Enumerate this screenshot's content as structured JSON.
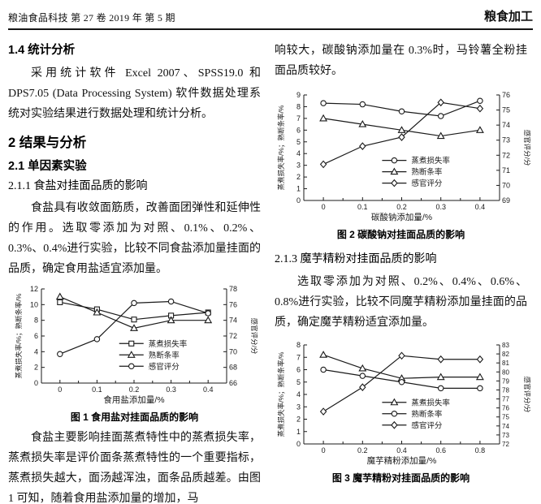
{
  "header": {
    "journal_info": "粮油食品科技 第 27 卷 2019 年 第 5 期",
    "section_label": "粮食加工"
  },
  "left_column": {
    "heading_14": "1.4  统计分析",
    "para_stats": "采用统计软件 Excel 2007、SPSS19.0 和 DPS7.05 (Data Processing System) 软件数据处理系统对实验结果进行数据处理和统计分析。",
    "heading_2": "2  结果与分析",
    "heading_21": "2.1  单因素实验",
    "heading_211": "2.1.1  食盐对挂面品质的影响",
    "para_salt": "食盐具有收敛面筋质，改善面团弹性和延伸性的作用。选取零添加为对照、0.1%、0.2%、0.3%、0.4%进行实验，比较不同食盐添加量挂面的品质，确定食用盐适宜添加量。",
    "para_salt2": "食盐主要影响挂面蒸煮特性中的蒸煮损失率，蒸煮损失率是评价面条蒸煮特性的一个重要指标，蒸煮损失越大，面汤越浑浊，面条品质越差。由图 1 可知，随着食用盐添加量的增加，马"
  },
  "right_column": {
    "para_cont": "响较大，碳酸钠添加量在 0.3%时，马铃薯全粉挂面品质较好。",
    "heading_213": "2.1.3  魔芋精粉对挂面品质的影响",
    "para_konjac": "选取零添加为对照、0.2%、0.4%、0.6%、0.8%进行实验，比较不同魔芋精粉添加量挂面的品质，确定魔芋精粉适宜添加量。"
  },
  "colors": {
    "ink": "#1a1a1a"
  },
  "chart_data": [
    {
      "type": "line",
      "caption": "图 1  食用盐对挂面品质的影响",
      "categories": [
        "0",
        "0.1",
        "0.2",
        "0.3",
        "0.4"
      ],
      "xlabel": "食用盐添加量/%",
      "ylabel_left": "蒸煮损失率/%；熟断条率/%",
      "ylabel_right": "感官评分/分",
      "ylim_left": [
        0,
        12
      ],
      "ystep_left": 2,
      "ylim_right": [
        66,
        78
      ],
      "ystep_right": 2,
      "grid": false,
      "legend_position": "inside-center",
      "legend": {
        "x": 0.42,
        "y": 0.58
      },
      "series": [
        {
          "name": "蒸煮损失率",
          "marker": "square",
          "axis": "left",
          "values": [
            10.3,
            9.4,
            8.1,
            8.6,
            9.0
          ]
        },
        {
          "name": "熟断条率",
          "marker": "triangle",
          "axis": "left",
          "values": [
            11.0,
            9.0,
            7.0,
            8.0,
            8.0
          ]
        },
        {
          "name": "感官评分",
          "marker": "circle",
          "axis": "right",
          "values": [
            69.7,
            71.6,
            76.2,
            76.4,
            74.9
          ]
        }
      ]
    },
    {
      "type": "line",
      "caption": "图 2  碳酸钠对挂面品质的影响",
      "categories": [
        "0",
        "0.1",
        "0.2",
        "0.3",
        "0.4"
      ],
      "xlabel": "碳酸钠添加量/%",
      "ylabel_left": "蒸煮损失率/%；熟断条率/%",
      "ylabel_right": "感官评分/分",
      "ylim_left": [
        0,
        9
      ],
      "ystep_left": 1,
      "ylim_right": [
        69,
        76
      ],
      "ystep_right": 1,
      "grid": false,
      "legend_position": "inside-center",
      "legend": {
        "x": 0.4,
        "y": 0.62
      },
      "series": [
        {
          "name": "蒸煮损失率",
          "marker": "circle",
          "axis": "left",
          "values": [
            8.3,
            8.2,
            7.6,
            7.2,
            8.5
          ]
        },
        {
          "name": "熟断条率",
          "marker": "triangle",
          "axis": "left",
          "values": [
            7.0,
            6.5,
            6.0,
            5.5,
            6.0
          ]
        },
        {
          "name": "感官评分",
          "marker": "diamond",
          "axis": "right",
          "values": [
            71.4,
            72.6,
            73.2,
            75.5,
            75.1
          ]
        }
      ]
    },
    {
      "type": "line",
      "caption": "图 3  魔芋精粉对挂面品质的影响",
      "categories": [
        "0",
        "0.2",
        "0.4",
        "0.6",
        "0.8"
      ],
      "xlabel": "魔芋精粉添加量/%",
      "ylabel_left": "蒸煮损失率/%；熟断条率/%",
      "ylabel_right": "感官评分/分",
      "ylim_left": [
        0,
        8
      ],
      "ystep_left": 1,
      "ylim_right": [
        72,
        83
      ],
      "ystep_right": 1,
      "grid": false,
      "legend_position": "inside-center",
      "legend": {
        "x": 0.4,
        "y": 0.58
      },
      "series": [
        {
          "name": "蒸煮损失率",
          "marker": "triangle",
          "axis": "left",
          "values": [
            7.2,
            6.1,
            5.3,
            5.4,
            5.4
          ]
        },
        {
          "name": "熟断条率",
          "marker": "circle",
          "axis": "left",
          "values": [
            6.0,
            5.5,
            5.0,
            4.5,
            4.5
          ]
        },
        {
          "name": "感官评分",
          "marker": "diamond",
          "axis": "right",
          "values": [
            75.6,
            78.3,
            81.8,
            81.4,
            81.4
          ]
        }
      ]
    }
  ]
}
